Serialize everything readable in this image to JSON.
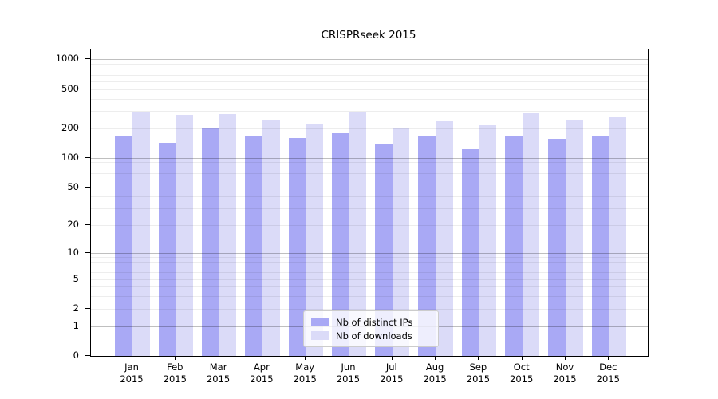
{
  "title": "CRISPRseek 2015",
  "colors": {
    "distinct_ips_bar": "#a9a9f5",
    "downloads_bar": "#dbdbf8",
    "grid_minor": "rgba(0,0,0,0.07)",
    "grid_major": "rgba(0,0,0,0.25)",
    "spine": "#000000",
    "legend_border": "#cccccc",
    "legend_background": "rgba(255,255,255,0.8)"
  },
  "legend": {
    "items": [
      {
        "label": "Nb of distinct IPs",
        "color_key": "distinct_ips_bar"
      },
      {
        "label": "Nb of downloads",
        "color_key": "downloads_bar"
      }
    ]
  },
  "chart_data": {
    "type": "bar",
    "title": "CRISPRseek 2015",
    "categories": [
      "Jan",
      "Feb",
      "Mar",
      "Apr",
      "May",
      "Jun",
      "Jul",
      "Aug",
      "Sep",
      "Oct",
      "Nov",
      "Dec"
    ],
    "year": "2015",
    "series": [
      {
        "name": "Nb of distinct IPs",
        "values": [
          170,
          143,
          204,
          165,
          158,
          178,
          141,
          170,
          123,
          165,
          156,
          167
        ]
      },
      {
        "name": "Nb of downloads",
        "values": [
          297,
          276,
          277,
          243,
          222,
          296,
          203,
          236,
          213,
          288,
          240,
          266
        ]
      }
    ],
    "yscale": "log1p",
    "yticks": [
      0,
      1,
      2,
      5,
      10,
      20,
      50,
      100,
      200,
      500,
      1000
    ],
    "ylim": [
      0,
      1000
    ],
    "grid": true,
    "legend_position": "lower-center-inside"
  }
}
